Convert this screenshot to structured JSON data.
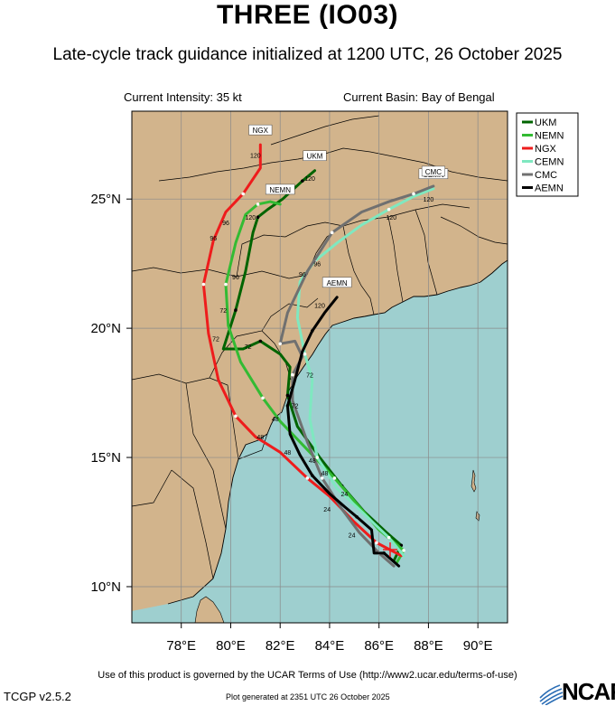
{
  "header": {
    "title": "THREE (IO03)",
    "subtitle": "Late-cycle track guidance initialized at 1200 UTC, 26 October 2025",
    "intensity": "Current Intensity: 35 kt",
    "basin": "Current Basin: Bay of Bengal"
  },
  "map": {
    "lon_range": [
      76.0,
      91.2
    ],
    "lat_range": [
      8.6,
      28.4
    ],
    "grid_lon": [
      78,
      80,
      82,
      84,
      86,
      88,
      90
    ],
    "grid_lat": [
      10,
      15,
      20,
      25
    ],
    "lon_labels": [
      "78°E",
      "80°E",
      "82°E",
      "84°E",
      "86°E",
      "88°E",
      "90°E"
    ],
    "lat_labels": [
      "10°N",
      "15°N",
      "20°N",
      "25°N"
    ],
    "colors": {
      "land": "#d2b48c",
      "ocean": "#9ecfcf",
      "border": "#000000"
    }
  },
  "legend": {
    "entries": [
      {
        "name": "UKM",
        "color": "#006400"
      },
      {
        "name": "NEMN",
        "color": "#33bb33"
      },
      {
        "name": "NGX",
        "color": "#ee1c1c"
      },
      {
        "name": "CEMN",
        "color": "#7fe8c0"
      },
      {
        "name": "CMC",
        "color": "#707070"
      },
      {
        "name": "AEMN",
        "color": "#000000"
      }
    ]
  },
  "chart_data": {
    "type": "line",
    "title": "THREE (IO03)",
    "xlabel": "",
    "ylabel": "",
    "xlim": [
      76.0,
      91.2
    ],
    "ylim": [
      8.6,
      28.4
    ],
    "series": [
      {
        "name": "UKM",
        "color": "#006400",
        "end_label": "UKM",
        "end_hour": "120",
        "lon": [
          86.6,
          86.9,
          86.3,
          85.4,
          84.5,
          83.6,
          82.7,
          82.3,
          82.4,
          82.0,
          81.2,
          80.5,
          79.7,
          80.2,
          80.6,
          80.9,
          81.1,
          81.5,
          82.1,
          82.9,
          83.4
        ],
        "lat": [
          11.0,
          11.6,
          12.1,
          12.9,
          13.9,
          15.0,
          16.2,
          17.4,
          18.5,
          19.0,
          19.5,
          19.2,
          19.2,
          20.7,
          22.2,
          23.7,
          24.3,
          24.6,
          25.0,
          25.7,
          26.1
        ]
      },
      {
        "name": "NEMN",
        "color": "#33bb33",
        "end_label": "NEMN",
        "end_hour": "120",
        "lon": [
          86.7,
          87.0,
          86.0,
          85.1,
          84.2,
          83.1,
          82.0,
          81.3,
          80.4,
          79.9,
          79.8,
          80.2,
          80.6,
          81.1,
          81.6,
          82.0
        ],
        "lat": [
          10.9,
          11.4,
          12.2,
          13.2,
          14.2,
          15.3,
          16.4,
          17.3,
          18.7,
          20.1,
          21.7,
          23.3,
          24.4,
          24.8,
          24.9,
          24.8
        ]
      },
      {
        "name": "NGX",
        "color": "#ee1c1c",
        "end_label": "NGX",
        "end_hour": "120",
        "lon": [
          86.9,
          85.9,
          85.0,
          84.0,
          83.1,
          82.0,
          81.0,
          80.2,
          79.5,
          79.1,
          78.9,
          79.3,
          79.8,
          80.5,
          81.2,
          81.2
        ],
        "lat": [
          11.2,
          11.7,
          12.5,
          13.5,
          14.2,
          15.2,
          15.8,
          16.6,
          18.0,
          19.8,
          21.7,
          23.4,
          24.5,
          25.2,
          26.2,
          27.1
        ]
      },
      {
        "name": "CEMN",
        "color": "#7fe8c0",
        "end_label": "CEMN",
        "end_hour": "120",
        "lon": [
          87.0,
          86.4,
          85.3,
          84.3,
          83.5,
          83.2,
          83.3,
          83.0,
          82.7,
          82.8,
          83.4,
          84.3,
          85.3,
          86.4,
          87.4,
          88.2
        ],
        "lat": [
          11.2,
          11.9,
          12.9,
          13.8,
          15.0,
          16.5,
          18.0,
          19.0,
          20.4,
          21.8,
          22.6,
          23.3,
          24.0,
          24.6,
          25.1,
          25.4
        ]
      },
      {
        "name": "CMC",
        "color": "#707070",
        "end_label": "CMC",
        "end_hour": "120",
        "lon": [
          86.6,
          86.0,
          85.2,
          84.5,
          83.7,
          83.1,
          82.5,
          82.5,
          82.9,
          82.6,
          82.0,
          82.3,
          83.1,
          84.1,
          85.3,
          86.4,
          87.4,
          88.2
        ],
        "lat": [
          10.8,
          11.3,
          12.1,
          13.0,
          14.2,
          15.6,
          17.2,
          18.2,
          18.9,
          19.5,
          19.4,
          20.6,
          22.2,
          23.7,
          24.5,
          24.9,
          25.2,
          25.5
        ]
      },
      {
        "name": "AEMN",
        "color": "#000000",
        "end_label": "AEMN",
        "end_hour": "120",
        "lon": [
          86.8,
          86.2,
          85.8,
          85.7,
          85.1,
          84.6,
          84.0,
          83.3,
          82.8,
          82.4,
          82.3,
          82.6,
          82.9,
          83.3,
          83.8,
          84.3
        ],
        "lat": [
          10.8,
          11.3,
          11.3,
          12.2,
          12.7,
          13.1,
          13.6,
          14.3,
          15.1,
          15.9,
          17.0,
          18.0,
          19.1,
          19.9,
          20.6,
          21.2
        ]
      }
    ],
    "hour_labels": [
      {
        "text": "24",
        "lon": 83.9,
        "lat": 12.9
      },
      {
        "text": "24",
        "lon": 84.9,
        "lat": 11.9
      },
      {
        "text": "24",
        "lon": 84.6,
        "lat": 13.5
      },
      {
        "text": "48",
        "lon": 81.2,
        "lat": 15.7
      },
      {
        "text": "48",
        "lon": 81.8,
        "lat": 16.4
      },
      {
        "text": "48",
        "lon": 82.3,
        "lat": 15.1
      },
      {
        "text": "48",
        "lon": 83.3,
        "lat": 14.8
      },
      {
        "text": "48",
        "lon": 83.8,
        "lat": 14.3
      },
      {
        "text": "72",
        "lon": 79.4,
        "lat": 19.5
      },
      {
        "text": "72",
        "lon": 79.7,
        "lat": 20.6
      },
      {
        "text": "72",
        "lon": 80.7,
        "lat": 19.2
      },
      {
        "text": "72",
        "lon": 82.6,
        "lat": 16.9
      },
      {
        "text": "72",
        "lon": 83.2,
        "lat": 18.1
      },
      {
        "text": "96",
        "lon": 79.3,
        "lat": 23.4
      },
      {
        "text": "96",
        "lon": 79.8,
        "lat": 24.0
      },
      {
        "text": "96",
        "lon": 80.2,
        "lat": 21.9
      },
      {
        "text": "96",
        "lon": 82.9,
        "lat": 22.0
      },
      {
        "text": "96",
        "lon": 83.5,
        "lat": 22.4
      },
      {
        "text": "120",
        "lon": 81.0,
        "lat": 26.6
      },
      {
        "text": "120",
        "lon": 83.2,
        "lat": 25.7
      },
      {
        "text": "120",
        "lon": 80.8,
        "lat": 24.2
      },
      {
        "text": "120",
        "lon": 86.5,
        "lat": 24.2
      },
      {
        "text": "120",
        "lon": 88.0,
        "lat": 24.9
      },
      {
        "text": "120",
        "lon": 83.6,
        "lat": 20.8
      }
    ]
  },
  "footer": {
    "terms": "Use of this product is governed by the UCAR Terms of Use (http://www2.ucar.edu/terms-of-use)",
    "version": "TCGP v2.5.2",
    "generated": "Plot generated at 2351 UTC   26 October 2025",
    "logo": "NCAR"
  }
}
